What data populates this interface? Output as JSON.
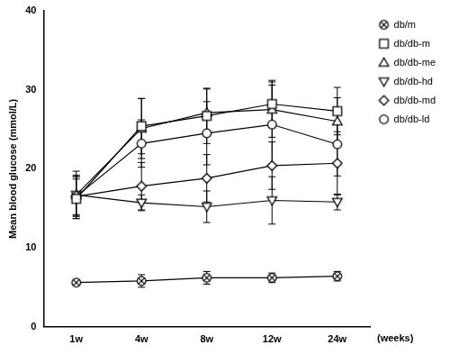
{
  "chart_data": {
    "type": "line",
    "y_label": "Mean blood glucose (mmol/L)",
    "x_label": "(weeks)",
    "categories": [
      "1w",
      "4w",
      "8w",
      "12w",
      "24w"
    ],
    "ylim": [
      0,
      40
    ],
    "yticks": [
      0,
      10,
      20,
      30,
      40
    ],
    "grid": false,
    "legend": "right",
    "series": [
      {
        "name": "db/m",
        "color": "#000000",
        "marker": "circle-x",
        "values": [
          5.6,
          5.8,
          6.2,
          6.2,
          6.4
        ],
        "errors": [
          0.3,
          0.8,
          0.8,
          0.6,
          0.6
        ]
      },
      {
        "name": "db/db-m",
        "color": "#000000",
        "marker": "square",
        "values": [
          16.2,
          25.4,
          26.7,
          28.2,
          27.3
        ],
        "errors": [
          2.5,
          3.5,
          3.5,
          3.0,
          3.0
        ]
      },
      {
        "name": "db/db-me",
        "color": "#000000",
        "marker": "triangle",
        "values": [
          16.7,
          25.1,
          27.1,
          27.5,
          26.0
        ],
        "errors": [
          3.0,
          3.8,
          3.0,
          3.5,
          3.0
        ]
      },
      {
        "name": "db/db-hd",
        "color": "#000000",
        "marker": "triangle-down",
        "values": [
          16.7,
          15.7,
          15.2,
          16.0,
          15.8
        ],
        "errors": [
          2.5,
          1.0,
          2.0,
          3.0,
          1.0
        ]
      },
      {
        "name": "db/db-md",
        "color": "#000000",
        "marker": "diamond",
        "values": [
          16.5,
          17.8,
          18.8,
          20.4,
          20.7
        ],
        "errors": [
          2.5,
          3.0,
          3.0,
          3.0,
          4.0
        ]
      },
      {
        "name": "db/db-ld",
        "color": "#000000",
        "marker": "circle",
        "values": [
          16.5,
          23.2,
          24.5,
          25.6,
          23.1
        ],
        "errors": [
          2.5,
          3.0,
          4.0,
          5.0,
          4.0
        ]
      }
    ]
  }
}
